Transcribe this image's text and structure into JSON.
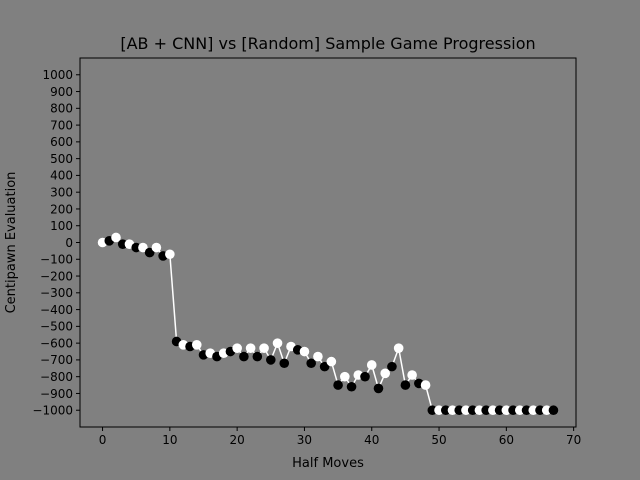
{
  "chart_data": {
    "type": "scatter",
    "title": "[AB + CNN] vs [Random] Sample Game Progression",
    "xlabel": "Half Moves",
    "ylabel": "Centipawn Evaluation",
    "xlim": [
      -3.35,
      70.35
    ],
    "ylim": [
      -1100,
      1100
    ],
    "xticks": [
      0,
      10,
      20,
      30,
      40,
      50,
      60,
      70
    ],
    "yticks": [
      -1000,
      -900,
      -800,
      -700,
      -600,
      -500,
      -400,
      -300,
      -200,
      -100,
      0,
      100,
      200,
      300,
      400,
      500,
      600,
      700,
      800,
      900,
      1000
    ],
    "grid": false,
    "line_color": "#ffffff",
    "even_move_color": "#ffffff",
    "odd_move_color": "#000000",
    "x": [
      0,
      1,
      2,
      3,
      4,
      5,
      6,
      7,
      8,
      9,
      10,
      11,
      12,
      13,
      14,
      15,
      16,
      17,
      18,
      19,
      20,
      21,
      22,
      23,
      24,
      25,
      26,
      27,
      28,
      29,
      30,
      31,
      32,
      33,
      34,
      35,
      36,
      37,
      38,
      39,
      40,
      41,
      42,
      43,
      44,
      45,
      46,
      47,
      48,
      49,
      50,
      51,
      52,
      53,
      54,
      55,
      56,
      57,
      58,
      59,
      60,
      61,
      62,
      63,
      64,
      65,
      66,
      67
    ],
    "y": [
      0,
      10,
      30,
      -10,
      -10,
      -30,
      -30,
      -60,
      -30,
      -80,
      -70,
      -590,
      -610,
      -620,
      -610,
      -670,
      -660,
      -680,
      -660,
      -650,
      -630,
      -680,
      -630,
      -680,
      -630,
      -700,
      -600,
      -720,
      -620,
      -640,
      -650,
      -720,
      -680,
      -740,
      -710,
      -850,
      -800,
      -860,
      -790,
      -800,
      -730,
      -870,
      -780,
      -740,
      -630,
      -850,
      -790,
      -840,
      -850,
      -1000,
      -1000,
      -1000,
      -1000,
      -1000,
      -1000,
      -1000,
      -1000,
      -1000,
      -1000,
      -1000,
      -1000,
      -1000,
      -1000,
      -1000,
      -1000,
      -1000,
      -1000,
      -1000
    ]
  }
}
